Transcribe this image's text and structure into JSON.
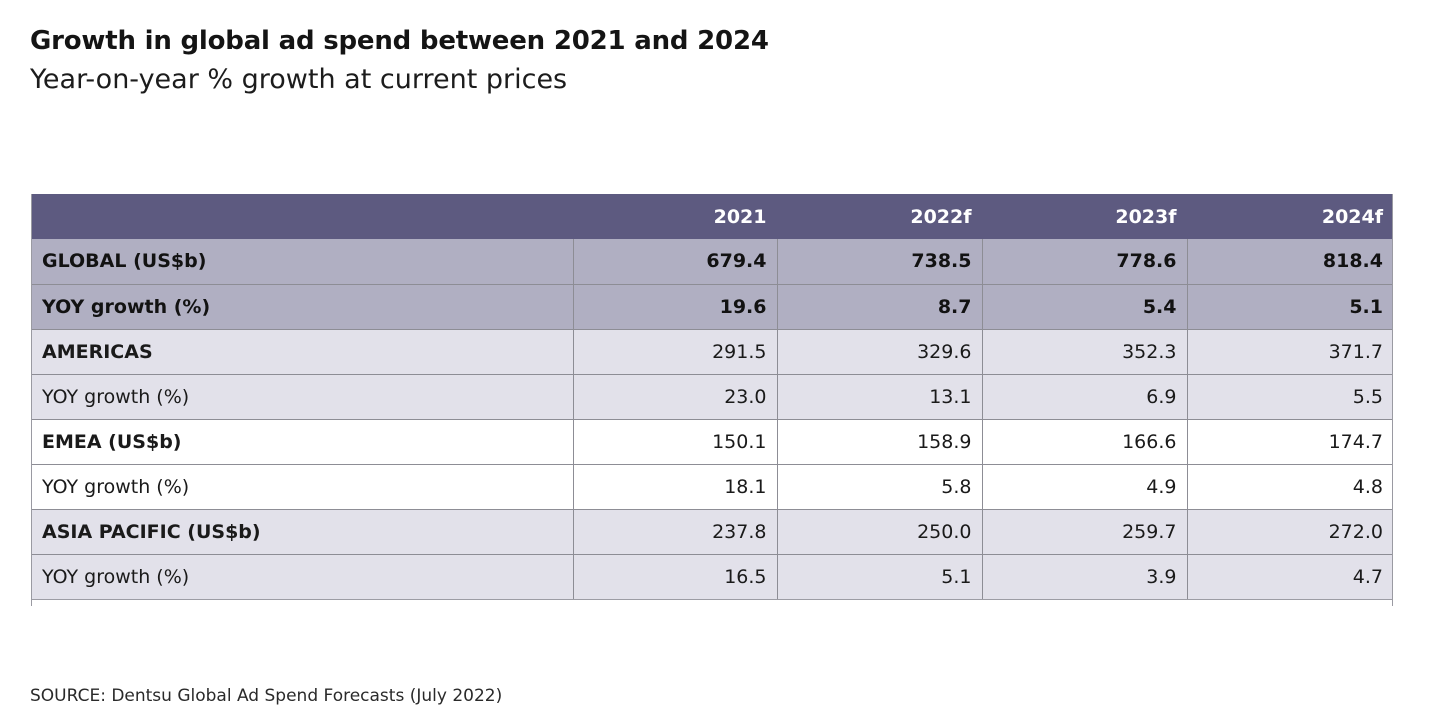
{
  "header": {
    "title": "Growth in global ad spend between 2021 and 2024",
    "subtitle": "Year-on-year % growth at current prices"
  },
  "chart_data": {
    "type": "table",
    "title": "Growth in global ad spend between 2021 and 2024",
    "subtitle": "Year-on-year % growth at current prices",
    "columns": [
      "",
      "2021",
      "2022f",
      "2023f",
      "2024f"
    ],
    "rows": [
      {
        "label": "GLOBAL (US$b)",
        "values": [
          "679.4",
          "738.5",
          "778.6",
          "818.4"
        ]
      },
      {
        "label": "YOY growth (%)",
        "values": [
          "19.6",
          "8.7",
          "5.4",
          "5.1"
        ]
      },
      {
        "label": "AMERICAS",
        "values": [
          "291.5",
          "329.6",
          "352.3",
          "371.7"
        ]
      },
      {
        "label": "YOY growth (%)",
        "values": [
          "23.0",
          "13.1",
          "6.9",
          "5.5"
        ]
      },
      {
        "label": "EMEA (US$b)",
        "values": [
          "150.1",
          "158.9",
          "166.6",
          "174.7"
        ]
      },
      {
        "label": "YOY growth (%)",
        "values": [
          "18.1",
          "5.8",
          "4.9",
          "4.8"
        ]
      },
      {
        "label": "ASIA PACIFIC (US$b)",
        "values": [
          "237.8",
          "250.0",
          "259.7",
          "272.0"
        ]
      },
      {
        "label": "YOY growth (%)",
        "values": [
          "16.5",
          "5.1",
          "3.9",
          "4.7"
        ]
      }
    ],
    "colors": {
      "header_bg": "#5d5a80",
      "global_rows_bg": "#b0afc2",
      "shaded_rows_bg": "#e2e1ea",
      "white_rows_bg": "#ffffff"
    }
  },
  "footer": {
    "source": "SOURCE: Dentsu Global Ad Spend Forecasts (July 2022)"
  }
}
